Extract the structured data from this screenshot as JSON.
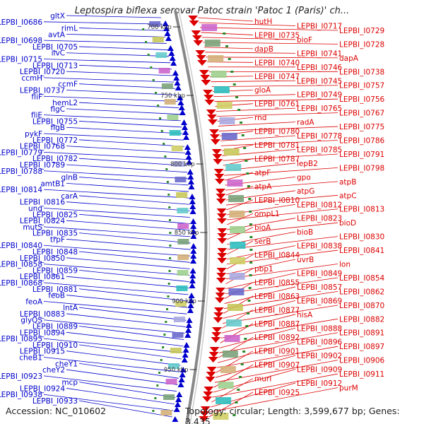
{
  "title": "Leptospira biflexa serovar Patoc strain 'Patoc 1 (Paris)' ch...",
  "footer": {
    "accession": "Accession: NC_010602",
    "summary": "Topology: circular; Length: 3,599,677 bp; Genes: 3,435"
  },
  "colors": {
    "left_strand": "#0000cc",
    "right_strand": "#dd0000",
    "backbone": "#888888",
    "tick_mark": "#2a8a2a"
  },
  "kbp_ticks": [
    "700 kbp",
    "750 kbp",
    "800 kbp",
    "850 kbp",
    "900 kbp",
    "950 kbp"
  ],
  "left_labels": [
    "gltX",
    "LEPBI_I0686",
    "rimL",
    "avtA",
    "LEPBI_I0698",
    "LEPBI_I0705",
    "ilvC",
    "LEPBI_I0715",
    "LEPBI_I0713",
    "LEPBI_I0720",
    "ccmH",
    "ccmF",
    "LEPBI_I0737",
    "fliF",
    "hemL2",
    "flgC",
    "fliE",
    "LEPBI_I0755",
    "flgB",
    "pykF",
    "LEPBI_I0772",
    "LEPBI_I0768",
    "LEPBI_I0779",
    "LEPBI_I0782",
    "LEPBI_I0789",
    "LEPBI_I0788",
    "glnB",
    "amtB1",
    "LEPBI_I0814",
    "carA",
    "LEPBI_I0816",
    "ung",
    "LEPBI_I0825",
    "LEPBI_I0824",
    "mutS",
    "LEPBI_I0835",
    "trpF",
    "LEPBI_I0840",
    "LEPBI_I0848",
    "LEPBI_I0850",
    "LEPBI_I0858",
    "LEPBI_I0859",
    "LEPBI_I0861",
    "LEPBI_I0868",
    "LEPBI_I0881",
    "feoB",
    "feoA",
    "lntA",
    "LEPBI_I0883",
    "glyQS",
    "LEPBI_I0889",
    "LEPBI_I0894",
    "LEPBI_I0895",
    "LEPBI_I0910",
    "LEPBI_I0915",
    "cheB1",
    "cheY1",
    "cheY2",
    "LEPBI_I0923",
    "mcp",
    "LEPBI_I0924",
    "LEPBI_I0938",
    "LEPBI_I0933"
  ],
  "right_labels": [
    "hutH",
    "LEPBI_I0717",
    "LEPBI_I0729",
    "LEPBI_I0735",
    "bioF",
    "LEPBI_I0728",
    "dapB",
    "LEPBI_I0741",
    "dapA",
    "LEPBI_I0740",
    "LEPBI_I0746",
    "LEPBI_I0738",
    "LEPBI_I0747",
    "LEPBI_I0745",
    "LEPBI_I0757",
    "gloA",
    "LEPBI_I0749",
    "LEPBI_I0756",
    "LEPBI_I0761",
    "LEPBI_I0765",
    "LEPBI_I0767",
    "rnd",
    "radA",
    "LEPBI_I0775",
    "LEPBI_I0780",
    "LEPBI_I0778",
    "LEPBI_I0786",
    "LEPBI_I0781",
    "LEPBI_I0785",
    "LEPBI_I0791",
    "LEPBI_I0787",
    "lepB2",
    "LEPBI_I0798",
    "atpF",
    "gpo",
    "atpB",
    "atpA",
    "atpG",
    "atpC",
    "LEPBI_I0810",
    "LEPBI_I0812",
    "LEPBI_I0813",
    "ompL1",
    "LEPBI_I0823",
    "bioD",
    "bioA",
    "bioB",
    "LEPBI_I0830",
    "serB",
    "LEPBI_I0838",
    "LEPBI_I0841",
    "LEPBI_I0844",
    "uvrB",
    "lon",
    "pbp1",
    "LEPBI_I0849",
    "LEPBI_I0854",
    "LEPBI_I0855",
    "LEPBI_I0857",
    "LEPBI_I0862",
    "LEPBI_I0863",
    "LEPBI_I0869",
    "LEPBI_I0870",
    "LEPBI_I0877",
    "hisA",
    "LEPBI_I0882",
    "LEPBI_I0887",
    "LEPBI_I0888",
    "LEPBI_I0891",
    "LEPBI_I0892",
    "LEPBI_I0896",
    "LEPBI_I0897",
    "LEPBI_I0901",
    "LEPBI_I0902",
    "LEPBI_I0906",
    "LEPBI_I0907",
    "LEPBI_I0909",
    "LEPBI_I0911",
    "murI",
    "LEPBI_I0912",
    "purM",
    "LEPBI_I0925"
  ]
}
